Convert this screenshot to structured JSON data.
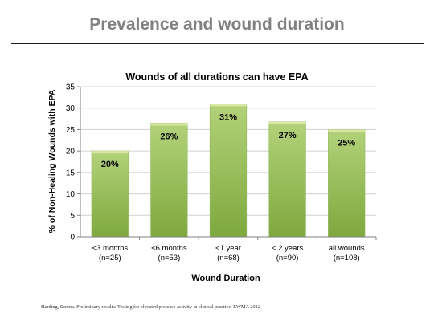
{
  "slide": {
    "title": "Prevalence and wound duration",
    "citation": "Harding, Serena.  Preliminary results: Testing for elevated protease activity in clinical practice. EWMA 2012"
  },
  "colors": {
    "bar_fill_top": "#b3d27a",
    "bar_fill_bottom": "#7ea93e",
    "bar_top_highlight": "#d9e8a5",
    "grid": "#d0d0d0",
    "axis": "#7f7f7f"
  },
  "chart_data": {
    "type": "bar",
    "title": "Wounds of all durations can have EPA",
    "xlabel": "Wound Duration",
    "ylabel": "% of Non-Healing Wounds with EPA",
    "ylim": [
      0,
      35
    ],
    "yticks": [
      "0",
      "5",
      "10",
      "15",
      "20",
      "25",
      "30",
      "35"
    ],
    "grid": true,
    "legend": "none",
    "categories": [
      {
        "label": "<3 months",
        "n": "(n=25)"
      },
      {
        "label": "<6 months",
        "n": "(n=53)"
      },
      {
        "label": "<1 year",
        "n": "(n=68)"
      },
      {
        "label": "< 2 years",
        "n": "(n=90)"
      },
      {
        "label": "all wounds",
        "n": "(n=108)"
      }
    ],
    "values": [
      20,
      26.5,
      31,
      26.8,
      25
    ],
    "data_labels": [
      "20%",
      "26%",
      "31%",
      "27%",
      "25%"
    ]
  }
}
